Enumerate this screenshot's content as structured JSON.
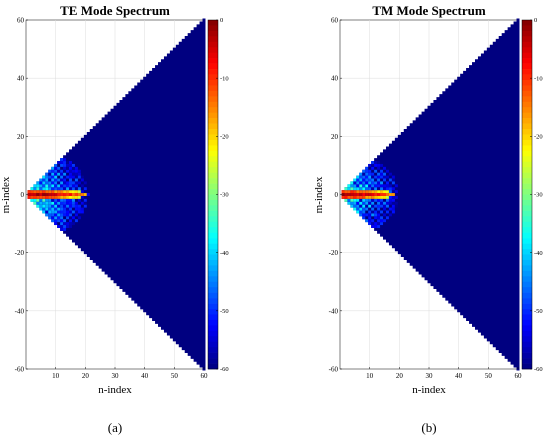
{
  "chart_data": [
    {
      "type": "heatmap",
      "title": "TE Mode Spectrum",
      "xlabel": "n-index",
      "ylabel": "m-index",
      "caption": "(a)",
      "xlim": [
        0,
        60
      ],
      "ylim": [
        -60,
        60
      ],
      "xticks": [
        10,
        20,
        30,
        40,
        50,
        60
      ],
      "yticks": [
        -60,
        -40,
        -20,
        0,
        20,
        40,
        60
      ],
      "colorbar": {
        "range": [
          -60,
          0
        ],
        "ticks": [
          0,
          -10,
          -20,
          -30,
          -40,
          -50,
          -60
        ],
        "colormap": "jet"
      },
      "domain": "|m| <= n",
      "floor_db": -60,
      "core_rows": [
        {
          "m": 0,
          "n_max": 20,
          "peak_db": 0
        },
        {
          "m": 1,
          "n_max": 18,
          "peak_db": -8
        },
        {
          "m": -1,
          "n_max": 18,
          "peak_db": -8
        }
      ],
      "fringe_extent_m": 15,
      "fringe_extent_n": 20
    },
    {
      "type": "heatmap",
      "title": "TM Mode Spectrum",
      "xlabel": "n-index",
      "ylabel": "m-index",
      "caption": "(b)",
      "xlim": [
        0,
        60
      ],
      "ylim": [
        -60,
        60
      ],
      "xticks": [
        10,
        20,
        30,
        40,
        50,
        60
      ],
      "yticks": [
        -60,
        -40,
        -20,
        0,
        20,
        40,
        60
      ],
      "colorbar": {
        "range": [
          -60,
          0
        ],
        "ticks": [
          0,
          -10,
          -20,
          -30,
          -40,
          -50,
          -60
        ],
        "colormap": "jet"
      },
      "domain": "|m| <= n",
      "floor_db": -60,
      "core_rows": [
        {
          "m": 0,
          "n_max": 18,
          "peak_db": 0
        },
        {
          "m": 1,
          "n_max": 16,
          "peak_db": -8
        },
        {
          "m": -1,
          "n_max": 16,
          "peak_db": -8
        }
      ],
      "fringe_extent_m": 14,
      "fringe_extent_n": 19
    }
  ]
}
